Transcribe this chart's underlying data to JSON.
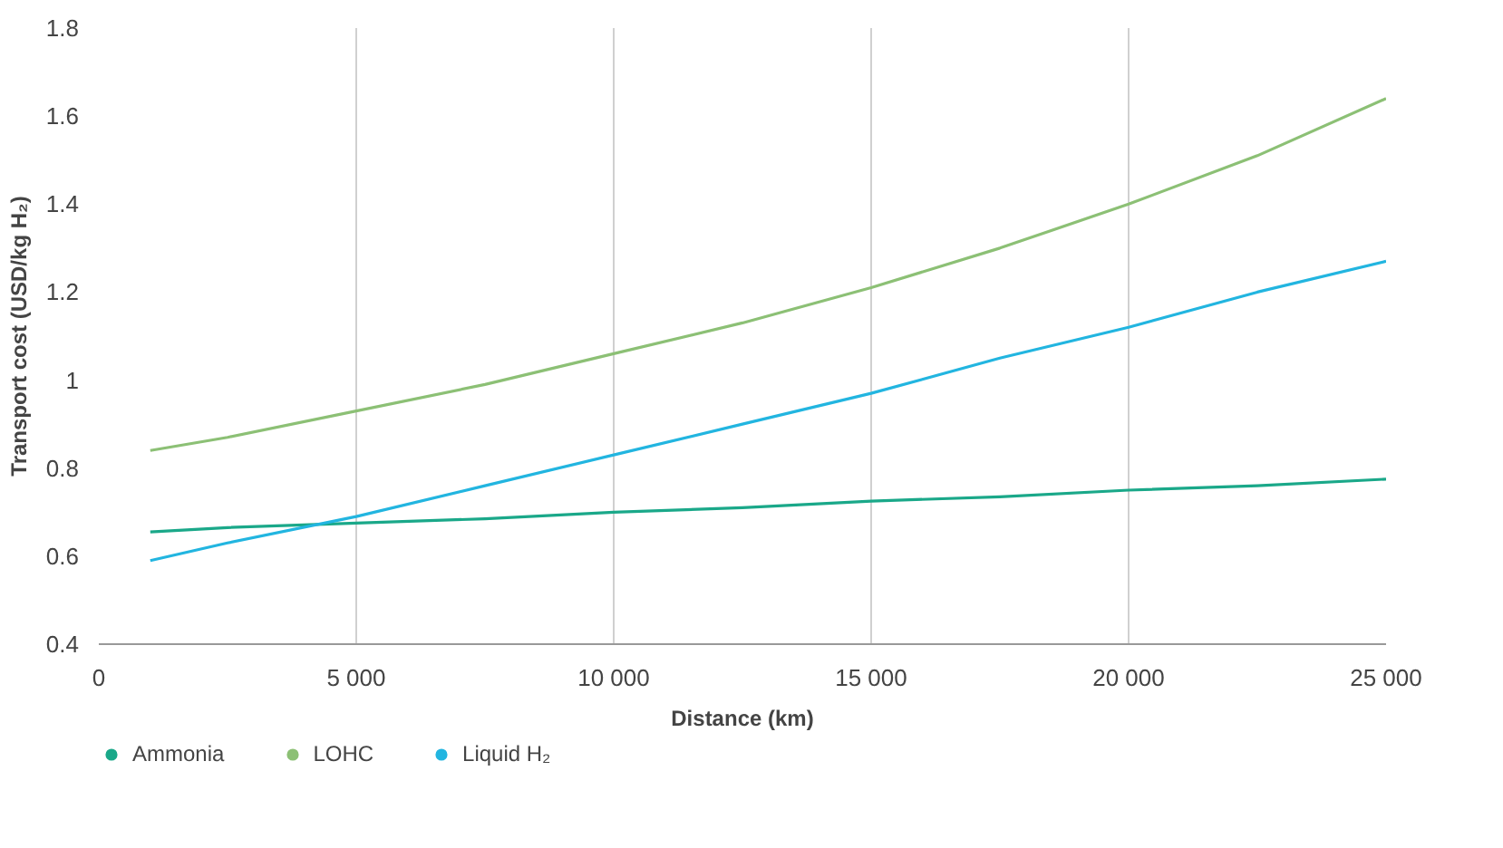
{
  "chart_data": {
    "type": "line",
    "xlabel": "Distance (km)",
    "ylabel": "Transport cost (USD/kg H₂)",
    "x": [
      1000,
      2500,
      5000,
      7500,
      10000,
      12500,
      15000,
      17500,
      20000,
      22500,
      25000
    ],
    "series": [
      {
        "name": "Ammonia",
        "color": "#1aa889",
        "values": [
          0.655,
          0.665,
          0.675,
          0.685,
          0.7,
          0.71,
          0.725,
          0.735,
          0.75,
          0.76,
          0.775
        ]
      },
      {
        "name": "LOHC",
        "color": "#8cc075",
        "values": [
          0.84,
          0.87,
          0.93,
          0.99,
          1.06,
          1.13,
          1.21,
          1.3,
          1.4,
          1.51,
          1.64
        ]
      },
      {
        "name": "Liquid H₂",
        "color": "#22b5e0",
        "values": [
          0.59,
          0.63,
          0.69,
          0.76,
          0.83,
          0.9,
          0.97,
          1.05,
          1.12,
          1.2,
          1.27
        ]
      }
    ],
    "xlim": [
      0,
      25000
    ],
    "ylim": [
      0.4,
      1.8
    ],
    "xticks": [
      0,
      {
        "value": 5000,
        "label": "5 000"
      },
      {
        "value": 10000,
        "label": "10 000"
      },
      {
        "value": 15000,
        "label": "15 000"
      },
      {
        "value": 20000,
        "label": "20 000"
      },
      {
        "value": 25000,
        "label": "25 000"
      }
    ],
    "yticks": [
      0.4,
      0.6,
      0.8,
      1,
      1.2,
      1.4,
      1.6,
      1.8
    ],
    "grid": "x",
    "legend": "bottom",
    "marker": "none",
    "line_style": "solid"
  }
}
